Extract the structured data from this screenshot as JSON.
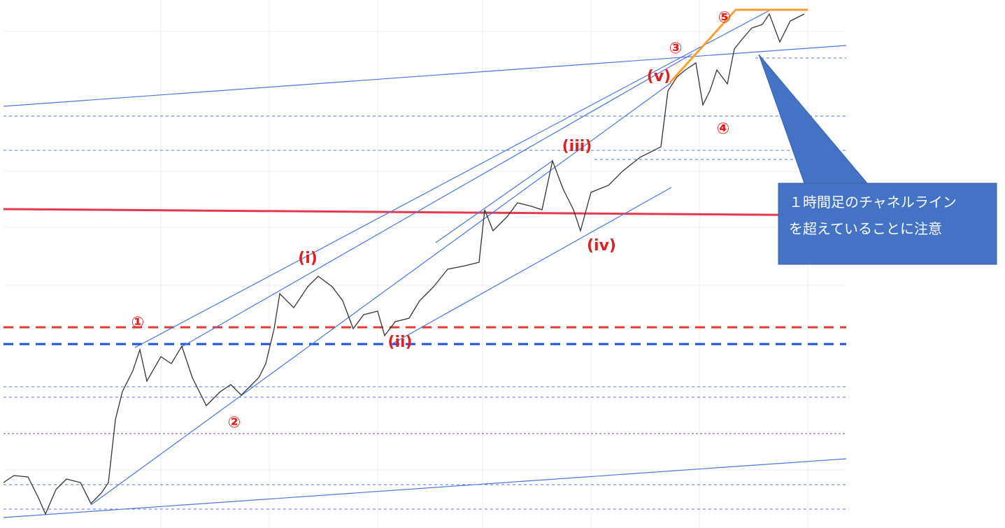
{
  "waves": [
    "①",
    "②",
    "③",
    "④",
    "⑤"
  ],
  "subwaves": [
    "(i)",
    "(ii)",
    "(iii)",
    "(iv)",
    "(v)"
  ],
  "callout": [
    "１時間足のチャネルライン",
    "を超えていることに注意"
  ]
}
